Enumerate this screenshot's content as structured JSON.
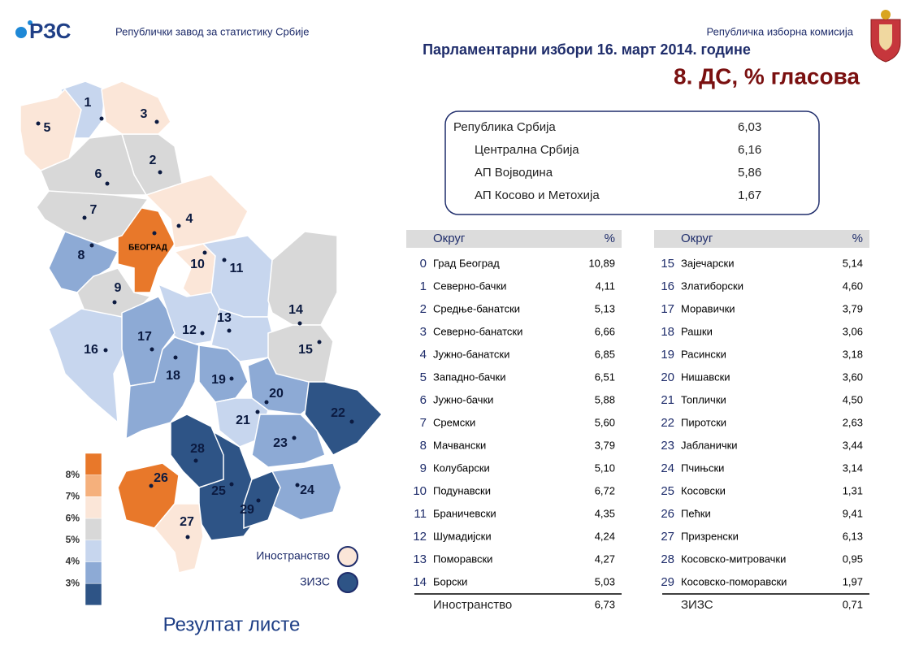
{
  "header": {
    "logo": "РЗС",
    "institute": "Републички завод за статистику Србије",
    "commission": "Републичка изборна комисија",
    "title": "Парламентарни избори 16. март 2014. године",
    "subtitle": "8. ДС, % гласова"
  },
  "summary": [
    {
      "name": "Република Србија",
      "value": "6,03"
    },
    {
      "name": "Централна Србија",
      "value": "6,16"
    },
    {
      "name": "АП Војводина",
      "value": "5,86"
    },
    {
      "name": "АП Косово и Метохија",
      "value": "1,67"
    }
  ],
  "table": {
    "headers": [
      "Округ",
      "%"
    ],
    "rows": [
      {
        "id": "0",
        "name": "Град Београд",
        "value": {
          "value": 10.89,
          "label": "10,89"
        }
      },
      {
        "id": "1",
        "name": "Северно-бачки",
        "value": {
          "value": 4.11,
          "label": "4,11"
        }
      },
      {
        "id": "2",
        "name": "Средње-банатски",
        "value": {
          "value": 5.13,
          "label": "5,13"
        }
      },
      {
        "id": "3",
        "name": "Северно-банатски",
        "value": {
          "value": 6.66,
          "label": "6,66"
        }
      },
      {
        "id": "4",
        "name": "Јужно-банатски",
        "value": {
          "value": 6.85,
          "label": "6,85"
        }
      },
      {
        "id": "5",
        "name": "Западно-бачки",
        "value": {
          "value": 6.51,
          "label": "6,51"
        }
      },
      {
        "id": "6",
        "name": "Јужно-бачки",
        "value": {
          "value": 5.88,
          "label": "5,88"
        }
      },
      {
        "id": "7",
        "name": "Сремски",
        "value": {
          "value": 5.6,
          "label": "5,60"
        }
      },
      {
        "id": "8",
        "name": "Мачвански",
        "value": {
          "value": 3.79,
          "label": "3,79"
        }
      },
      {
        "id": "9",
        "name": "Колубарски",
        "value": {
          "value": 5.1,
          "label": "5,10"
        }
      },
      {
        "id": "10",
        "name": "Подунавски",
        "value": {
          "value": 6.72,
          "label": "6,72"
        }
      },
      {
        "id": "11",
        "name": "Браничевски",
        "value": {
          "value": 4.35,
          "label": "4,35"
        }
      },
      {
        "id": "12",
        "name": "Шумадијски",
        "value": {
          "value": 4.24,
          "label": "4,24"
        }
      },
      {
        "id": "13",
        "name": "Поморавски",
        "value": {
          "value": 4.27,
          "label": "4,27"
        }
      },
      {
        "id": "14",
        "name": "Борски",
        "value": {
          "value": 5.03,
          "label": "5,03"
        }
      },
      {
        "id": "15",
        "name": "Зајечарски",
        "value": {
          "value": 5.14,
          "label": "5,14"
        }
      },
      {
        "id": "16",
        "name": "Златиборски",
        "value": {
          "value": 4.6,
          "label": "4,60"
        }
      },
      {
        "id": "17",
        "name": "Моравички",
        "value": {
          "value": 3.79,
          "label": "3,79"
        }
      },
      {
        "id": "18",
        "name": "Рашки",
        "value": {
          "value": 3.06,
          "label": "3,06"
        }
      },
      {
        "id": "19",
        "name": "Расински",
        "value": {
          "value": 3.18,
          "label": "3,18"
        }
      },
      {
        "id": "20",
        "name": "Нишавски",
        "value": {
          "value": 3.6,
          "label": "3,60"
        }
      },
      {
        "id": "21",
        "name": "Топлички",
        "value": {
          "value": 4.5,
          "label": "4,50"
        }
      },
      {
        "id": "22",
        "name": "Пиротски",
        "value": {
          "value": 2.63,
          "label": "2,63"
        }
      },
      {
        "id": "23",
        "name": "Јабланички",
        "value": {
          "value": 3.44,
          "label": "3,44"
        }
      },
      {
        "id": "24",
        "name": "Пчињски",
        "value": {
          "value": 3.14,
          "label": "3,14"
        }
      },
      {
        "id": "25",
        "name": "Косовски",
        "value": {
          "value": 1.31,
          "label": "1,31"
        }
      },
      {
        "id": "26",
        "name": "Пећки",
        "value": {
          "value": 9.41,
          "label": "9,41"
        }
      },
      {
        "id": "27",
        "name": "Призренски",
        "value": {
          "value": 6.13,
          "label": "6,13"
        }
      },
      {
        "id": "28",
        "name": "Косовско-митровачки",
        "value": {
          "value": 0.95,
          "label": "0,95"
        }
      },
      {
        "id": "29",
        "name": "Косовско-поморавски",
        "value": {
          "value": 1.97,
          "label": "1,97"
        }
      }
    ],
    "abroad": {
      "name": "Иностранство",
      "value": {
        "value": 6.73,
        "label": "6,73"
      }
    },
    "zizs": {
      "name": "ЗИЗС",
      "value": {
        "value": 0.71,
        "label": "0,71"
      }
    }
  },
  "map": {
    "belgrade_label": "БЕОГРАД"
  },
  "legend": {
    "colors": [
      "#e8782a",
      "#f5b07c",
      "#fbe6d8",
      "#d8d8d8",
      "#c7d6ee",
      "#8daad5",
      "#2e5486"
    ],
    "breaks": [
      {
        "value": 8,
        "label": "8%"
      },
      {
        "value": 7,
        "label": "7%"
      },
      {
        "value": 6,
        "label": "6%"
      },
      {
        "value": 5,
        "label": "5%"
      },
      {
        "value": 4,
        "label": "4%"
      },
      {
        "value": 3,
        "label": "3%"
      }
    ]
  },
  "footer": "Резултат листе"
}
